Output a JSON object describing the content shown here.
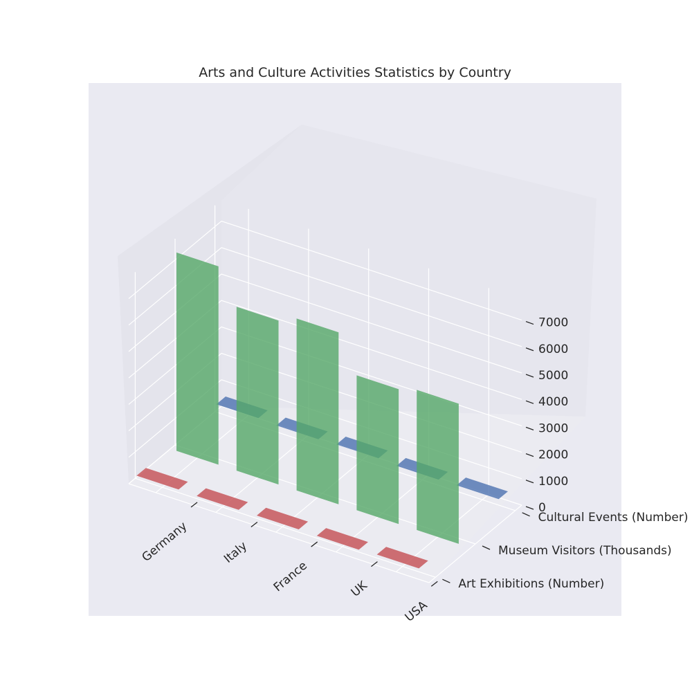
{
  "chart_data": {
    "type": "bar",
    "title": "Arts and Culture Activities Statistics by Country",
    "xlabel": "",
    "ylabel": "",
    "zlabel": "",
    "categories": [
      "Germany",
      "Italy",
      "France",
      "UK",
      "USA"
    ],
    "zlim": [
      0,
      7800
    ],
    "z_ticks": [
      0,
      1000,
      2000,
      3000,
      4000,
      5000,
      6000,
      7000
    ],
    "grid": true,
    "series": [
      {
        "name": "Art Exhibitions (Number)",
        "color": "#c44e52",
        "values": [
          320,
          300,
          310,
          290,
          330
        ]
      },
      {
        "name": "Museum Visitors (Thousands)",
        "color": "#55a868",
        "values": [
          7500,
          6200,
          6500,
          5100,
          5300
        ]
      },
      {
        "name": "Cultural Events (Number)",
        "color": "#4c72b0",
        "values": [
          500,
          450,
          480,
          420,
          430
        ]
      }
    ]
  }
}
